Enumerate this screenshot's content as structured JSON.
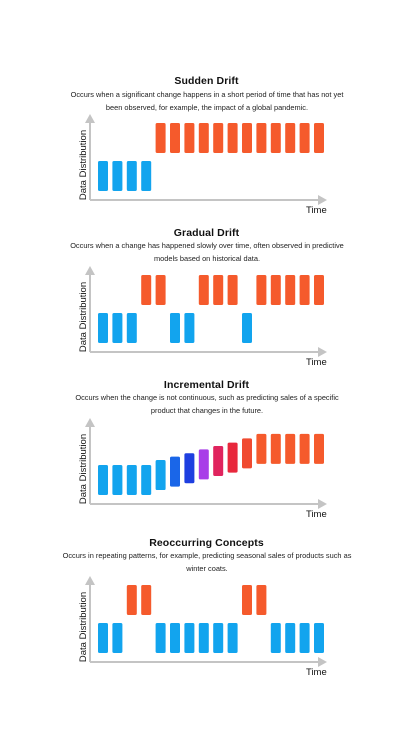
{
  "diagrams": [
    {
      "title": "Sudden Drift",
      "description": "Occurs when a significant change happens in a short period of time that has not yet been observed, for example, the impact of a global pandemic.",
      "ylabel": "Data Distribution",
      "xlabel": "Time",
      "bars": [
        {
          "level": "low",
          "color": "#12a4ee"
        },
        {
          "level": "low",
          "color": "#12a4ee"
        },
        {
          "level": "low",
          "color": "#12a4ee"
        },
        {
          "level": "low",
          "color": "#12a4ee"
        },
        {
          "level": "high",
          "color": "#f55a2c"
        },
        {
          "level": "high",
          "color": "#f55a2c"
        },
        {
          "level": "high",
          "color": "#f55a2c"
        },
        {
          "level": "high",
          "color": "#f55a2c"
        },
        {
          "level": "high",
          "color": "#f55a2c"
        },
        {
          "level": "high",
          "color": "#f55a2c"
        },
        {
          "level": "high",
          "color": "#f55a2c"
        },
        {
          "level": "high",
          "color": "#f55a2c"
        },
        {
          "level": "high",
          "color": "#f55a2c"
        },
        {
          "level": "high",
          "color": "#f55a2c"
        },
        {
          "level": "high",
          "color": "#f55a2c"
        },
        {
          "level": "high",
          "color": "#f55a2c"
        }
      ]
    },
    {
      "title": "Gradual Drift",
      "description": "Occurs when a change has happened slowly over time, often observed in predictive models based on historical data.",
      "ylabel": "Data Distribution",
      "xlabel": "Time",
      "bars": [
        {
          "level": "low",
          "color": "#12a4ee"
        },
        {
          "level": "low",
          "color": "#12a4ee"
        },
        {
          "level": "low",
          "color": "#12a4ee"
        },
        {
          "level": "high",
          "color": "#f55a2c"
        },
        {
          "level": "high",
          "color": "#f55a2c"
        },
        {
          "level": "low",
          "color": "#12a4ee"
        },
        {
          "level": "low",
          "color": "#12a4ee"
        },
        {
          "level": "high",
          "color": "#f55a2c"
        },
        {
          "level": "high",
          "color": "#f55a2c"
        },
        {
          "level": "high",
          "color": "#f55a2c"
        },
        {
          "level": "low",
          "color": "#12a4ee"
        },
        {
          "level": "high",
          "color": "#f55a2c"
        },
        {
          "level": "high",
          "color": "#f55a2c"
        },
        {
          "level": "high",
          "color": "#f55a2c"
        },
        {
          "level": "high",
          "color": "#f55a2c"
        },
        {
          "level": "high",
          "color": "#f55a2c"
        }
      ]
    },
    {
      "title": "Incremental Drift",
      "description": "Occurs when the change is not continuous, such as predicting sales of a specific product that changes in the future.",
      "ylabel": "Data Distribution",
      "xlabel": "Time",
      "bars": [
        {
          "level": 0.0,
          "color": "#12a4ee"
        },
        {
          "level": 0.0,
          "color": "#12a4ee"
        },
        {
          "level": 0.0,
          "color": "#12a4ee"
        },
        {
          "level": 0.0,
          "color": "#12a4ee"
        },
        {
          "level": 0.13,
          "color": "#12a4ee"
        },
        {
          "level": 0.22,
          "color": "#1a66e8"
        },
        {
          "level": 0.31,
          "color": "#1e3fe0"
        },
        {
          "level": 0.41,
          "color": "#a83ee8"
        },
        {
          "level": 0.5,
          "color": "#e0245e"
        },
        {
          "level": 0.59,
          "color": "#e8283c"
        },
        {
          "level": 0.7,
          "color": "#f04a30"
        },
        {
          "level": 0.82,
          "color": "#f55a2c"
        },
        {
          "level": 0.82,
          "color": "#f55a2c"
        },
        {
          "level": 0.82,
          "color": "#f55a2c"
        },
        {
          "level": 0.82,
          "color": "#f55a2c"
        },
        {
          "level": 0.82,
          "color": "#f55a2c"
        }
      ]
    },
    {
      "title": "Reoccurring Concepts",
      "description": "Occurs in repeating patterns, for example, predicting seasonal sales of products such as winter coats.",
      "ylabel": "Data Distribution",
      "xlabel": "Time",
      "bars": [
        {
          "level": "low",
          "color": "#12a4ee"
        },
        {
          "level": "low",
          "color": "#12a4ee"
        },
        {
          "level": "high",
          "color": "#f55a2c"
        },
        {
          "level": "high",
          "color": "#f55a2c"
        },
        {
          "level": "low",
          "color": "#12a4ee"
        },
        {
          "level": "low",
          "color": "#12a4ee"
        },
        {
          "level": "low",
          "color": "#12a4ee"
        },
        {
          "level": "low",
          "color": "#12a4ee"
        },
        {
          "level": "low",
          "color": "#12a4ee"
        },
        {
          "level": "low",
          "color": "#12a4ee"
        },
        {
          "level": "high",
          "color": "#f55a2c"
        },
        {
          "level": "high",
          "color": "#f55a2c"
        },
        {
          "level": "low",
          "color": "#12a4ee"
        },
        {
          "level": "low",
          "color": "#12a4ee"
        },
        {
          "level": "low",
          "color": "#12a4ee"
        },
        {
          "level": "low",
          "color": "#12a4ee"
        }
      ]
    }
  ]
}
